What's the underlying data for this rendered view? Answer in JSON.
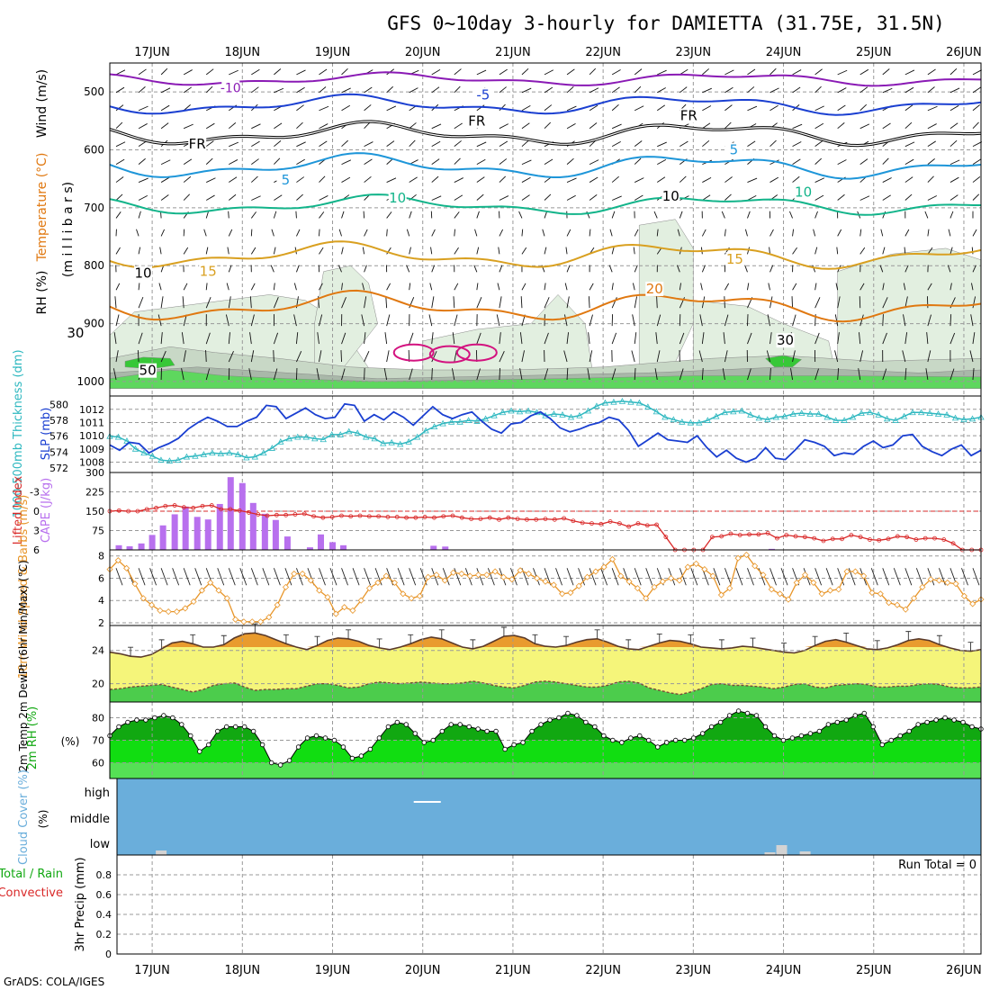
{
  "chart_data": {
    "type": "meteogram",
    "title": "GFS 0~10day 3-hourly for DAMIETTA (31.75E, 31.5N)",
    "credit": "GrADS: COLA/IGES",
    "dates": [
      "17JUN",
      "18JUN",
      "19JUN",
      "20JUN",
      "21JUN",
      "22JUN",
      "23JUN",
      "24JUN",
      "25JUN",
      "26JUN"
    ],
    "time_start_offset_days": -0.47,
    "time_end_offset_days": 9.19,
    "colors": {
      "contour_black": "#000000",
      "contour_purple": "#8a1ab5",
      "contour_blue": "#1a3fd1",
      "contour_cyan": "#1e96d9",
      "contour_teal": "#12b48a",
      "contour_gold": "#d9a020",
      "contour_orange": "#e07810",
      "contour_magenta": "#d3127f",
      "rh_light": "#e2efe0",
      "rh_mid": "#c8d8c6",
      "rh_dark": "#a9b8a9",
      "rh_green": "#37c837",
      "rh_green2": "#5ed75e",
      "slp": "#1a3fd1",
      "thickness": "#2fb8c0",
      "lifted": "#d92828",
      "cape": "#b870ee",
      "wind10": "#e8962a",
      "temp_fill": "#e8962a",
      "temp_band": "#f5f57a",
      "dew_fill": "#4ccc4c",
      "rh_dark_fill": "#11a811",
      "rh_mid_fill": "#11dd11",
      "rh_light_fill": "#55e055",
      "cloud": "#6aaedb",
      "cloud_bar": "#d3d3d3"
    },
    "panels": [
      {
        "name": "upper_air",
        "ylabel_parts": [
          "RH (%)",
          "Temperature (°C)",
          "Wind (m/s)"
        ],
        "ylabel_sub": "(m i l l i b a r s)",
        "y_ticks": [
          500,
          600,
          700,
          800,
          900,
          1000
        ],
        "y_range": [
          450,
          1025
        ],
        "contour_labels": [
          {
            "text": "-10",
            "day": 0.87,
            "p": 493,
            "color_key": "contour_purple"
          },
          {
            "text": "-5",
            "day": 3.67,
            "p": 505,
            "color_key": "contour_blue"
          },
          {
            "text": "FR",
            "day": 0.5,
            "p": 590,
            "color_key": "contour_black"
          },
          {
            "text": "FR",
            "day": 3.6,
            "p": 550,
            "color_key": "contour_black"
          },
          {
            "text": "FR",
            "day": 5.95,
            "p": 541,
            "color_key": "contour_black"
          },
          {
            "text": "5",
            "day": 1.48,
            "p": 652,
            "color_key": "contour_cyan"
          },
          {
            "text": "5",
            "day": 6.45,
            "p": 600,
            "color_key": "contour_cyan"
          },
          {
            "text": "10",
            "day": 2.72,
            "p": 683,
            "color_key": "contour_teal"
          },
          {
            "text": "10",
            "day": 7.22,
            "p": 673,
            "color_key": "contour_teal"
          },
          {
            "text": "15",
            "day": 0.62,
            "p": 810,
            "color_key": "contour_gold"
          },
          {
            "text": "15",
            "day": 6.46,
            "p": 789,
            "color_key": "contour_gold"
          },
          {
            "text": "20",
            "day": 5.57,
            "p": 840,
            "color_key": "contour_orange"
          },
          {
            "text": "10",
            "day": -0.1,
            "p": 813,
            "color_key": "contour_black"
          },
          {
            "text": "10",
            "day": 5.75,
            "p": 680,
            "color_key": "contour_black"
          },
          {
            "text": "30",
            "day": -0.85,
            "p": 916,
            "color_key": "contour_black"
          },
          {
            "text": "30",
            "day": 7.02,
            "p": 929,
            "color_key": "contour_black"
          },
          {
            "text": "50",
            "day": -0.05,
            "p": 981,
            "color_key": "contour_black"
          }
        ]
      },
      {
        "name": "slp_thickness",
        "ylabel_left": "1000-500mb Thickness (dm)",
        "ylabel_right": "SLP (mb)",
        "left_ticks": [
          572,
          574,
          576,
          578,
          580
        ],
        "right_ticks": [
          1008,
          1009,
          1010,
          1011,
          1012
        ],
        "slp_series": [
          1009.3,
          1008.9,
          1009.5,
          1009.4,
          1008.7,
          1009.1,
          1009.4,
          1009.8,
          1010.5,
          1011.0,
          1011.4,
          1011.1,
          1010.7,
          1010.7,
          1011.1,
          1011.4,
          1012.3,
          1012.2,
          1011.3,
          1011.7,
          1012.1,
          1011.6,
          1011.3,
          1011.4,
          1012.4,
          1012.3,
          1011.1,
          1011.6,
          1011.2,
          1011.8,
          1011.4,
          1010.8,
          1011.5,
          1012.2,
          1011.6,
          1011.3,
          1011.6,
          1011.8,
          1011.1,
          1010.5,
          1010.2,
          1010.9,
          1011.0,
          1011.5,
          1011.8,
          1011.3,
          1010.6,
          1010.3,
          1010.5,
          1010.8,
          1011.0,
          1011.4,
          1011.2,
          1010.4,
          1009.2,
          1009.7,
          1010.2,
          1009.7,
          1009.6,
          1009.5,
          1010.0,
          1009.1,
          1008.4,
          1008.9,
          1008.3,
          1008.0,
          1008.3,
          1009.1,
          1008.3,
          1008.2,
          1008.9,
          1009.7,
          1009.5,
          1009.2,
          1008.5,
          1008.7,
          1008.6,
          1009.2,
          1009.6,
          1009.1,
          1009.3,
          1010.0,
          1010.1,
          1009.2,
          1008.8,
          1008.5,
          1009.0,
          1009.3,
          1008.5,
          1008.9
        ],
        "thickness_series": [
          576.0,
          575.9,
          575.4,
          574.4,
          573.9,
          573.5,
          573.0,
          572.9,
          573.0,
          573.4,
          573.5,
          573.7,
          573.9,
          573.8,
          573.9,
          573.7,
          573.3,
          573.4,
          573.9,
          574.5,
          575.3,
          575.7,
          575.9,
          575.9,
          575.7,
          575.6,
          576.2,
          576.2,
          576.6,
          576.4,
          575.9,
          575.7,
          575.1,
          575.2,
          575.0,
          575.3,
          575.9,
          576.7,
          577.2,
          577.6,
          577.8,
          577.8,
          578.0,
          577.9,
          578.2,
          578.6,
          579.0,
          579.2,
          579.1,
          579.2,
          579.0,
          578.6,
          578.8,
          578.7,
          578.4,
          578.6,
          579.2,
          579.8,
          580.2,
          580.3,
          580.4,
          580.3,
          580.2,
          579.7,
          579.1,
          578.4,
          578.1,
          577.8,
          577.7,
          577.7,
          578.0,
          578.5,
          579.0,
          579.1,
          579.2,
          578.7,
          578.3,
          578.1,
          578.4,
          578.5,
          578.8,
          578.9,
          578.8,
          578.8,
          578.4,
          578.0,
          578.0,
          578.4,
          578.9,
          579.0,
          578.7,
          578.2,
          578.0,
          578.5,
          579.0,
          579.0,
          578.9,
          578.8,
          578.7,
          578.3,
          578.1,
          578.2,
          578.4
        ]
      },
      {
        "name": "stability",
        "ylabel_left": "Lifted Index",
        "ylabel_right": "CAPE (J/kg)",
        "left_ticks": [
          "-3",
          "0",
          "3",
          "6"
        ],
        "right_ticks": [
          "75",
          "150",
          "225",
          "300"
        ],
        "lifted_series": [
          0.0,
          -0.1,
          0.0,
          0.0,
          -0.3,
          -0.5,
          -0.8,
          -0.9,
          -0.6,
          -0.5,
          -0.8,
          -0.9,
          -0.3,
          -0.3,
          -0.1,
          0.2,
          0.5,
          0.7,
          0.6,
          0.6,
          0.5,
          0.4,
          0.8,
          1.0,
          0.9,
          0.7,
          0.8,
          0.7,
          0.8,
          0.8,
          0.9,
          0.9,
          1.0,
          1.0,
          0.9,
          1.0,
          0.8,
          0.7,
          1.0,
          1.2,
          1.2,
          1.0,
          1.3,
          1.0,
          1.2,
          1.3,
          1.3,
          1.2,
          1.3,
          1.1,
          1.5,
          1.8,
          1.9,
          2.0,
          1.6,
          1.9,
          2.4,
          1.9,
          2.2,
          2.1,
          4.0,
          6.0,
          6.0,
          6.0,
          6.0,
          4.0,
          3.9,
          3.5,
          3.7,
          3.6,
          3.6,
          3.4,
          4.2,
          3.7,
          3.9,
          4.0,
          4.2,
          4.6,
          4.3,
          4.3,
          3.7,
          4.0,
          4.4,
          4.5,
          4.3,
          3.9,
          4.0,
          4.4,
          4.2,
          4.2,
          4.4,
          5.0,
          6.0,
          6.5,
          6.0
        ],
        "cape_bars": [
          {
            "day": -0.37,
            "v": 18
          },
          {
            "day": -0.25,
            "v": 14
          },
          {
            "day": -0.12,
            "v": 25
          },
          {
            "day": 0.0,
            "v": 58
          },
          {
            "day": 0.12,
            "v": 95
          },
          {
            "day": 0.25,
            "v": 138
          },
          {
            "day": 0.37,
            "v": 168
          },
          {
            "day": 0.5,
            "v": 128
          },
          {
            "day": 0.62,
            "v": 118
          },
          {
            "day": 0.75,
            "v": 178
          },
          {
            "day": 0.87,
            "v": 282
          },
          {
            "day": 1.0,
            "v": 259
          },
          {
            "day": 1.12,
            "v": 182
          },
          {
            "day": 1.25,
            "v": 140
          },
          {
            "day": 1.37,
            "v": 116
          },
          {
            "day": 1.5,
            "v": 52
          },
          {
            "day": 1.75,
            "v": 10
          },
          {
            "day": 1.87,
            "v": 60
          },
          {
            "day": 2.0,
            "v": 30
          },
          {
            "day": 2.12,
            "v": 18
          },
          {
            "day": 3.12,
            "v": 16
          },
          {
            "day": 3.25,
            "v": 13
          },
          {
            "day": 6.87,
            "v": 4
          }
        ]
      },
      {
        "name": "wind10",
        "ylabel": "10m Wind Speed & Barbs (m/s)",
        "y_ticks": [
          2,
          4,
          6,
          8
        ],
        "speed_series": [
          6.8,
          7.6,
          6.9,
          5.5,
          4.2,
          3.6,
          3.1,
          3.0,
          3.0,
          3.3,
          3.9,
          4.9,
          5.6,
          4.9,
          4.2,
          2.3,
          2.1,
          2.1,
          2.1,
          2.5,
          3.6,
          5.2,
          6.4,
          6.4,
          5.8,
          4.9,
          4.3,
          2.8,
          3.4,
          3.1,
          4.0,
          5.1,
          5.6,
          6.2,
          5.6,
          4.6,
          4.2,
          4.4,
          6.1,
          6.3,
          5.8,
          6.5,
          6.4,
          6.2,
          6.3,
          6.3,
          6.6,
          6.1,
          5.9,
          6.7,
          6.4,
          6.0,
          5.7,
          5.4,
          4.6,
          4.7,
          5.3,
          6.1,
          6.6,
          7.0,
          7.7,
          6.2,
          5.7,
          5.1,
          4.2,
          5.2,
          5.7,
          6.0,
          5.8,
          7.0,
          7.3,
          6.8,
          6.2,
          4.5,
          5.1,
          7.8,
          8.1,
          7.1,
          6.3,
          5.0,
          4.6,
          4.1,
          5.6,
          6.3,
          5.6,
          4.6,
          4.9,
          5.0,
          6.6,
          6.6,
          6.2,
          4.7,
          4.6,
          3.8,
          3.6,
          3.2,
          4.2,
          5.2,
          5.9,
          5.8,
          5.6,
          5.5,
          4.4,
          3.7,
          4.1
        ]
      },
      {
        "name": "temperature2m",
        "ylabel": "2m Temp 2m DewPt (6hr Min/Max) (°C)",
        "y_ticks": [
          20,
          24
        ],
        "temp_series": [
          23.8,
          23.6,
          23.3,
          23.2,
          23.5,
          24.2,
          24.9,
          25.1,
          24.8,
          24.4,
          24.4,
          24.7,
          25.5,
          26.0,
          26.1,
          25.8,
          25.3,
          24.8,
          24.4,
          24.1,
          24.6,
          25.2,
          25.5,
          25.4,
          25.1,
          24.6,
          24.3,
          24.1,
          24.4,
          24.8,
          25.3,
          25.6,
          25.4,
          24.9,
          24.4,
          24.2,
          24.5,
          25.1,
          25.7,
          25.8,
          25.5,
          24.8,
          24.5,
          24.4,
          24.6,
          25.0,
          25.3,
          25.4,
          25.0,
          24.5,
          24.2,
          24.1,
          24.5,
          24.9,
          25.2,
          25.1,
          24.8,
          24.4,
          24.3,
          24.2,
          24.3,
          24.5,
          24.4,
          24.2,
          24.0,
          23.8,
          23.7,
          24.0,
          24.6,
          25.1,
          25.3,
          25.0,
          24.6,
          24.2,
          24.1,
          24.3,
          24.7,
          25.2,
          25.4,
          25.2,
          24.7,
          24.3,
          24.0,
          23.9,
          24.1
        ],
        "dew_series": [
          19.3,
          19.4,
          19.6,
          19.7,
          19.8,
          19.9,
          19.6,
          19.3,
          19.0,
          19.3,
          19.8,
          20.0,
          20.1,
          19.6,
          19.2,
          19.3,
          19.3,
          19.4,
          19.4,
          19.7,
          20.0,
          20.0,
          19.8,
          19.5,
          19.6,
          20.0,
          20.2,
          20.1,
          20.0,
          20.1,
          20.2,
          20.1,
          20.0,
          20.0,
          20.1,
          20.3,
          20.1,
          19.8,
          19.6,
          19.5,
          19.8,
          20.2,
          20.3,
          20.2,
          20.0,
          19.8,
          19.6,
          19.6,
          19.8,
          20.2,
          20.3,
          20.1,
          19.5,
          19.2,
          18.9,
          18.7,
          19.0,
          19.4,
          19.9,
          20.0,
          19.8,
          19.8,
          19.7,
          19.6,
          19.4,
          19.6,
          19.9,
          20.0,
          19.6,
          19.5,
          19.8,
          19.9,
          20.0,
          19.9,
          19.6,
          19.6,
          19.7,
          19.7,
          19.9,
          20.0,
          19.9,
          19.6,
          19.5,
          19.5,
          19.6
        ]
      },
      {
        "name": "rh2m",
        "ylabel": "2m RH (%)",
        "y_ticks": [
          60,
          70,
          80
        ],
        "rh_series": [
          72,
          76,
          78,
          79,
          79,
          80,
          81,
          80,
          77,
          72,
          65,
          68,
          74,
          76,
          76,
          76,
          74,
          68,
          60,
          59,
          61,
          67,
          71,
          72,
          71,
          70,
          67,
          62,
          63,
          66,
          71,
          76,
          78,
          77,
          73,
          69,
          70,
          74,
          77,
          77,
          76,
          75,
          74,
          74,
          66,
          68,
          69,
          74,
          77,
          79,
          80,
          82,
          81,
          78,
          76,
          72,
          70,
          69,
          71,
          72,
          70,
          67,
          69,
          70,
          70,
          71,
          73,
          76,
          78,
          81,
          83,
          82,
          81,
          76,
          72,
          70,
          71,
          72,
          73,
          74,
          77,
          78,
          79,
          81,
          82,
          76,
          68,
          70,
          72,
          74,
          77,
          78,
          79,
          80,
          79,
          78,
          76,
          75
        ]
      },
      {
        "name": "cloud_cover",
        "ylabel": "Cloud Cover (%)",
        "levels": [
          "high",
          "middle",
          "low"
        ],
        "high_segments": [
          {
            "start_day": 2.9,
            "end_day": 3.2
          }
        ],
        "low_bars": [
          {
            "day": 0.1,
            "v": 0.25
          },
          {
            "day": 6.85,
            "v": 0.15
          },
          {
            "day": 6.98,
            "v": 0.55
          },
          {
            "day": 7.24,
            "v": 0.2
          }
        ]
      },
      {
        "name": "precip",
        "ylabel_left_a": "Total / Rain",
        "ylabel_left_b": "Convective",
        "ylabel": "3hr Precip (mm)",
        "y_ticks": [
          "0",
          "0.2",
          "0.4",
          "0.6",
          "0.8"
        ],
        "run_total": "Run Total = 0"
      }
    ]
  }
}
